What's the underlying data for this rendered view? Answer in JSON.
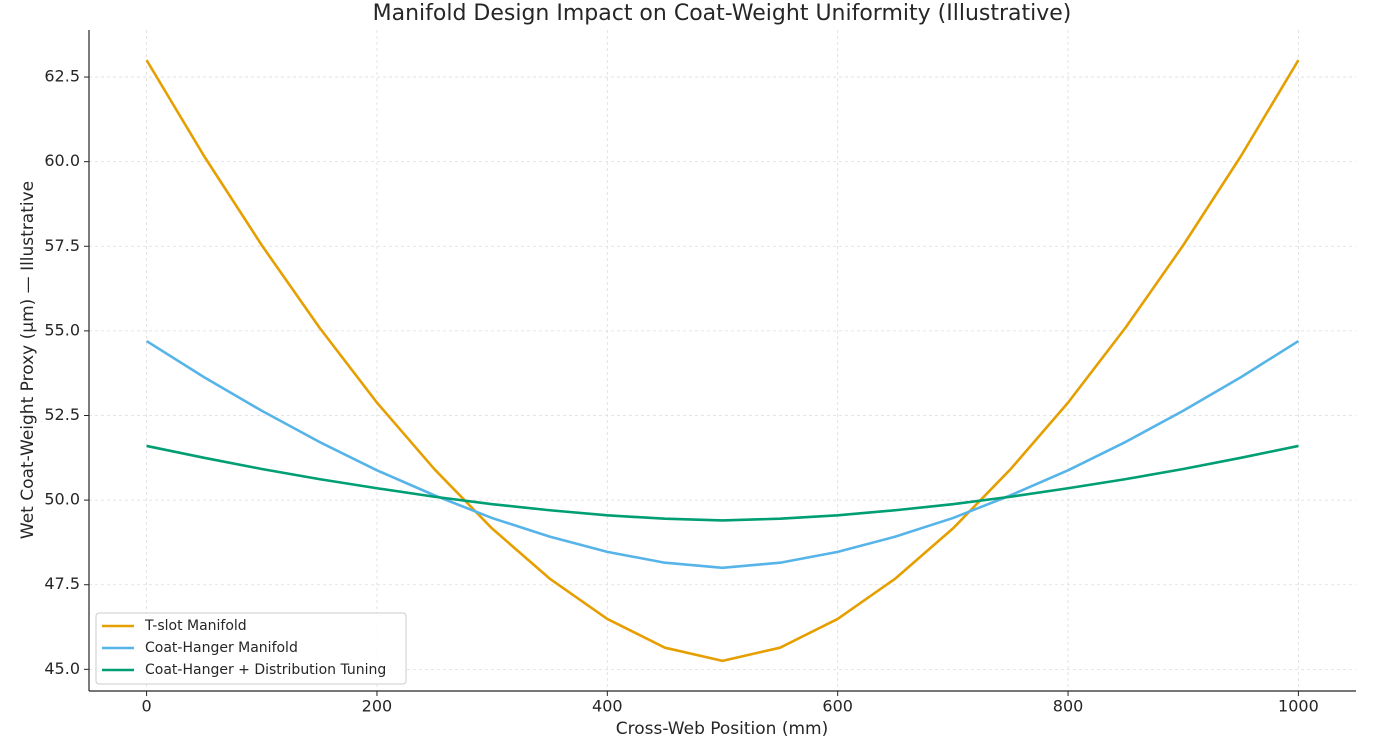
{
  "chart_data": {
    "type": "line",
    "title": "Manifold Design Impact on Coat-Weight Uniformity (Illustrative)",
    "x_label": "Cross-Web Position (mm)",
    "y_label": "Wet Coat-Weight Proxy (µm) — Illustrative",
    "x": [
      0,
      50,
      100,
      150,
      200,
      250,
      300,
      350,
      400,
      450,
      500,
      550,
      600,
      650,
      700,
      750,
      800,
      850,
      900,
      950,
      1000
    ],
    "series": [
      {
        "name": "T-slot Manifold",
        "color": "#E69F00",
        "values": [
          63.0,
          60.16,
          57.53,
          55.1,
          52.88,
          50.91,
          49.16,
          47.68,
          46.49,
          45.64,
          45.25,
          45.64,
          46.49,
          47.68,
          49.16,
          50.91,
          52.88,
          55.1,
          57.53,
          60.16,
          63.0
        ]
      },
      {
        "name": "Coat-Hanger Manifold",
        "color": "#56B4E9",
        "values": [
          54.7,
          53.63,
          52.64,
          51.72,
          50.88,
          50.14,
          49.47,
          48.92,
          48.47,
          48.15,
          48.0,
          48.15,
          48.47,
          48.92,
          49.47,
          50.14,
          50.88,
          51.72,
          52.64,
          53.63,
          54.7
        ]
      },
      {
        "name": "Coat-Hanger + Distribution Tuning",
        "color": "#009E73",
        "values": [
          51.6,
          51.25,
          50.92,
          50.62,
          50.35,
          50.1,
          49.88,
          49.7,
          49.55,
          49.45,
          49.4,
          49.45,
          49.55,
          49.7,
          49.88,
          50.1,
          50.35,
          50.62,
          50.92,
          51.25,
          51.6
        ]
      }
    ],
    "xlim": [
      -50,
      1050
    ],
    "ylim": [
      44.36,
      63.89
    ],
    "xticks": [
      0,
      200,
      400,
      600,
      800,
      1000
    ],
    "yticks": [
      {
        "value": 45,
        "label": "45.0"
      },
      47.5,
      {
        "value": 50,
        "label": "50.0"
      },
      52.5,
      {
        "value": 55,
        "label": "55.0"
      },
      57.5,
      {
        "value": 60,
        "label": "60.0"
      },
      62.5
    ],
    "grid": true,
    "legend": "lower left"
  }
}
